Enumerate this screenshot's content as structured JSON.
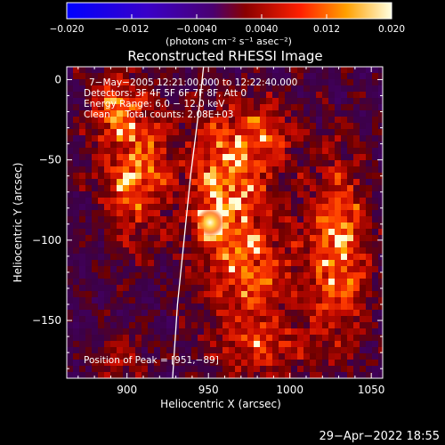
{
  "chart_data": {
    "type": "heatmap",
    "title": "Reconstructed RHESSI Image",
    "xlabel": "Heliocentric X (arcsec)",
    "ylabel": "Heliocentric Y (arcsec)",
    "xlim": [
      863,
      1057
    ],
    "ylim": [
      -186,
      8
    ],
    "x_ticks": [
      900,
      950,
      1000,
      1050
    ],
    "y_ticks": [
      0,
      -50,
      -100,
      -150
    ],
    "colorbar": {
      "range": [
        -0.02,
        0.02
      ],
      "ticks": [
        "−0.020",
        "−0.012",
        "−0.0040",
        "0.0040",
        "0.012",
        "0.020"
      ],
      "tick_values": [
        -0.02,
        -0.012,
        -0.004,
        0.004,
        0.012,
        0.02
      ],
      "unit_label": "(photons cm⁻² s⁻¹ asec⁻²)"
    },
    "annotations": {
      "line1": "7−May−2005 12:21:00.000 to 12:22:40.000",
      "line2": "Detectors: 3F 4F 5F 6F 7F 8F, Att 0",
      "line3": "Energy Range: 6.0 − 12.0 keV",
      "line4": "Clean     Total counts: 2.08E+03",
      "peak": "Position of Peak = [951,−89]"
    },
    "peak": {
      "x": 951,
      "y": -89,
      "value": 0.02
    },
    "limb_arcsec": [
      [
        947,
        8
      ],
      [
        944,
        -20
      ],
      [
        939,
        -60
      ],
      [
        935,
        -100
      ],
      [
        931,
        -140
      ],
      [
        928,
        -186
      ]
    ]
  },
  "footer": {
    "timestamp": "29−Apr−2022 18:55"
  }
}
